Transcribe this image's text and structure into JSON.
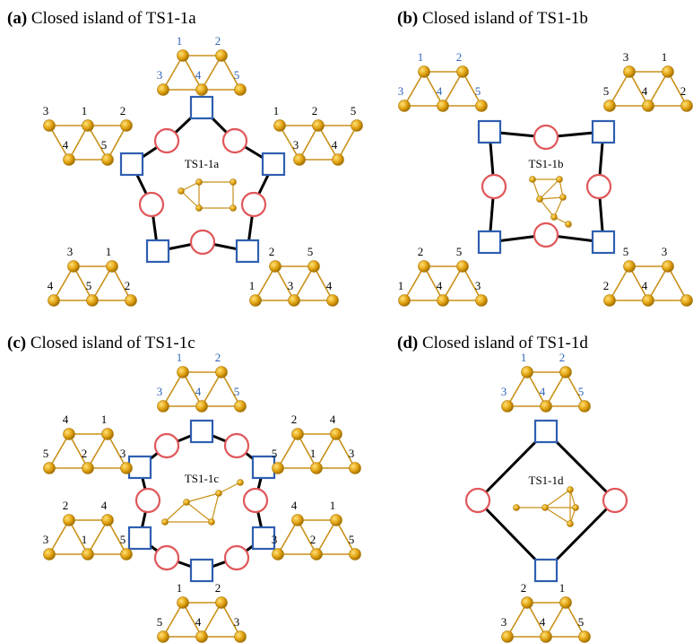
{
  "panels": [
    {
      "tag": "(a)",
      "title": "Closed island of TS1-1a",
      "center": "TS1-1a",
      "clusters": [
        {
          "labels": [
            "1",
            "2",
            "3",
            "4",
            "5"
          ]
        },
        {
          "labels": [
            "3",
            "1",
            "2",
            "4",
            "5"
          ]
        },
        {
          "labels": [
            "1",
            "2",
            "5",
            "3",
            "4"
          ]
        },
        {
          "labels": [
            "3",
            "1",
            "4",
            "5",
            "2"
          ]
        },
        {
          "labels": [
            "2",
            "5",
            "1",
            "3",
            "4"
          ]
        }
      ]
    },
    {
      "tag": "(b)",
      "title": "Closed island of TS1-1b",
      "center": "TS1-1b",
      "clusters": [
        {
          "labels": [
            "1",
            "2",
            "3",
            "4",
            "5"
          ]
        },
        {
          "labels": [
            "3",
            "1",
            "5",
            "4",
            "2"
          ]
        },
        {
          "labels": [
            "2",
            "5",
            "1",
            "4",
            "3"
          ]
        },
        {
          "labels": [
            "5",
            "3",
            "2",
            "4"
          ]
        }
      ]
    },
    {
      "tag": "(c)",
      "title": "Closed island of TS1-1c",
      "center": "TS1-1c",
      "clusters": [
        {
          "labels": [
            "1",
            "2",
            "3",
            "4",
            "5"
          ]
        },
        {
          "labels": [
            "4",
            "1",
            "5",
            "2",
            "3"
          ]
        },
        {
          "labels": [
            "2",
            "4",
            "5",
            "1",
            "3"
          ]
        },
        {
          "labels": [
            "2",
            "4",
            "3",
            "1",
            "5"
          ]
        },
        {
          "labels": [
            "4",
            "1",
            "3",
            "2",
            "5"
          ]
        },
        {
          "labels": [
            "1",
            "2",
            "5",
            "4",
            "3"
          ]
        }
      ]
    },
    {
      "tag": "(d)",
      "title": "Closed island of TS1-1d",
      "center": "TS1-1d",
      "clusters": [
        {
          "labels": [
            "1",
            "2",
            "3",
            "4",
            "5"
          ]
        },
        {
          "labels": [
            "2",
            "1",
            "3",
            "4",
            "5"
          ]
        }
      ]
    }
  ]
}
